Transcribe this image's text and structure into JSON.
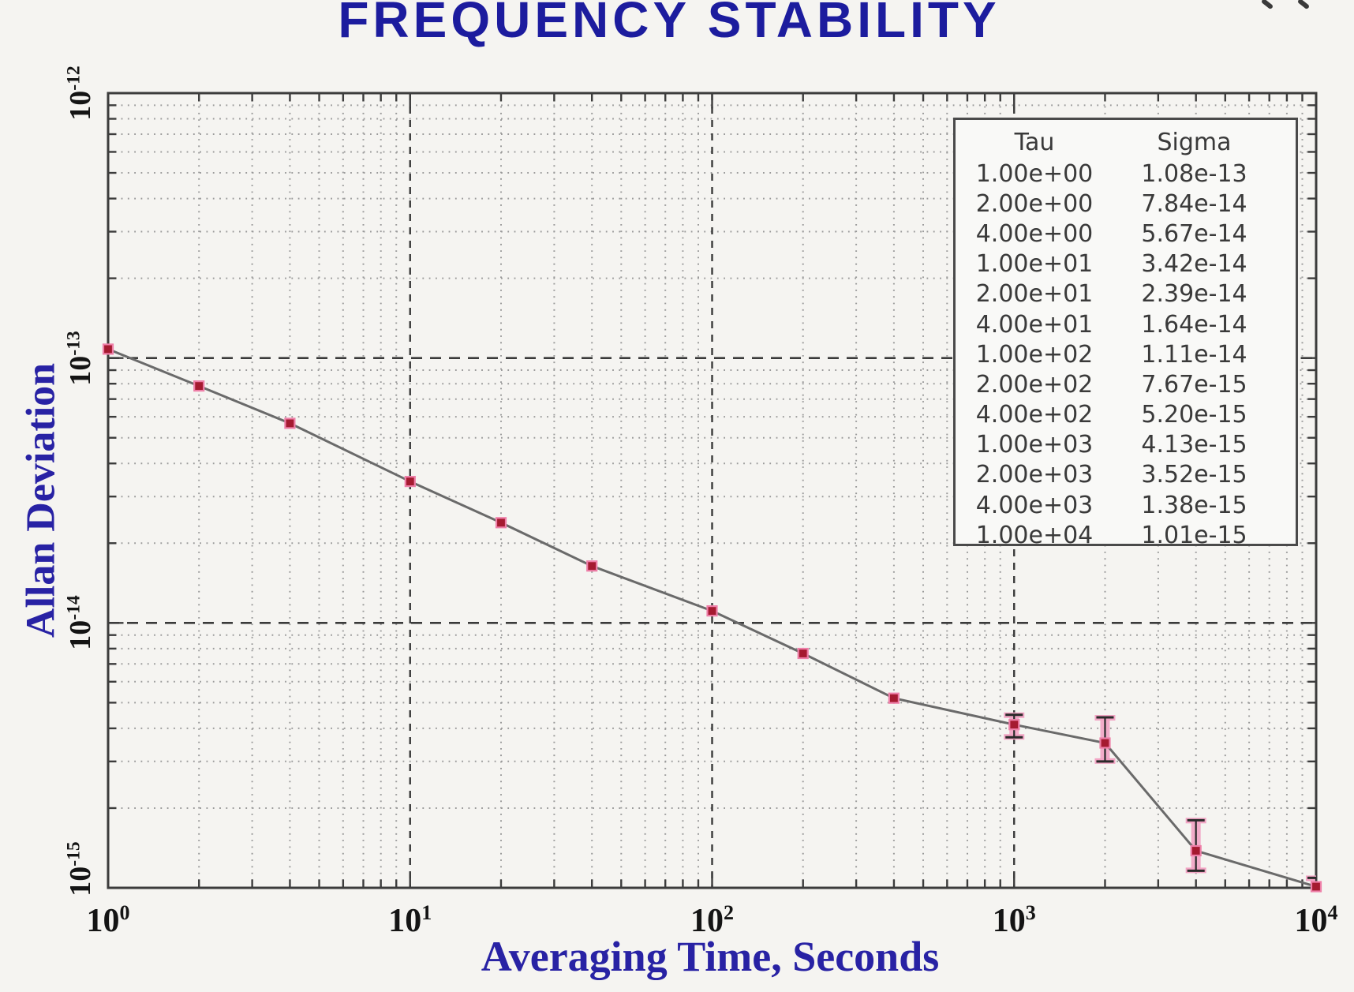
{
  "chart_data": {
    "type": "line",
    "title": "FREQUENCY STABILITY",
    "xlabel": "Averaging Time, Seconds",
    "ylabel": "Allan Deviation",
    "x_scale": "log",
    "y_scale": "log",
    "xlim": [
      1,
      10000
    ],
    "ylim": [
      1e-15,
      1e-12
    ],
    "grid": {
      "minor": "dotted",
      "major": "dashed"
    },
    "legend_position": "upper-right",
    "x_ticks": [
      {
        "base": "10",
        "exp": "0",
        "value": 1
      },
      {
        "base": "10",
        "exp": "1",
        "value": 10
      },
      {
        "base": "10",
        "exp": "2",
        "value": 100
      },
      {
        "base": "10",
        "exp": "3",
        "value": 1000
      },
      {
        "base": "10",
        "exp": "4",
        "value": 10000
      }
    ],
    "y_ticks": [
      {
        "base": "10",
        "exp": "-12",
        "value": 1e-12
      },
      {
        "base": "10",
        "exp": "-13",
        "value": 1e-13
      },
      {
        "base": "10",
        "exp": "-14",
        "value": 1e-14
      },
      {
        "base": "10",
        "exp": "-15",
        "value": 1e-15
      }
    ],
    "series": [
      {
        "name": "allan-deviation",
        "marker": "square",
        "x": [
          1,
          2,
          4,
          10,
          20,
          40,
          100,
          200,
          400,
          1000,
          2000,
          4000,
          10000
        ],
        "y": [
          1.08e-13,
          7.84e-14,
          5.67e-14,
          3.42e-14,
          2.39e-14,
          1.64e-14,
          1.11e-14,
          7.67e-15,
          5.2e-15,
          4.13e-15,
          3.52e-15,
          1.38e-15,
          1.01e-15
        ],
        "err_lo": [
          null,
          null,
          null,
          null,
          null,
          null,
          null,
          null,
          null,
          3.7e-15,
          3e-15,
          1.16e-15,
          9.6e-16
        ],
        "err_hi": [
          null,
          null,
          null,
          null,
          null,
          null,
          null,
          null,
          null,
          4.5e-15,
          4.4e-15,
          1.8e-15,
          1.09e-15
        ]
      }
    ],
    "table": {
      "headers": [
        "Tau",
        "Sigma"
      ],
      "rows": [
        [
          "1.00e+00",
          "1.08e-13"
        ],
        [
          "2.00e+00",
          "7.84e-14"
        ],
        [
          "4.00e+00",
          "5.67e-14"
        ],
        [
          "1.00e+01",
          "3.42e-14"
        ],
        [
          "2.00e+01",
          "2.39e-14"
        ],
        [
          "4.00e+01",
          "1.64e-14"
        ],
        [
          "1.00e+02",
          "1.11e-14"
        ],
        [
          "2.00e+02",
          "7.67e-15"
        ],
        [
          "4.00e+02",
          "5.20e-15"
        ],
        [
          "1.00e+03",
          "4.13e-15"
        ],
        [
          "2.00e+03",
          "3.52e-15"
        ],
        [
          "4.00e+03",
          "1.38e-15"
        ],
        [
          "1.00e+04",
          "1.01e-15"
        ]
      ]
    },
    "colors": {
      "title": "#1c1c9e",
      "axis_label": "#2822a4",
      "tick_label": "#141414",
      "frame": "#3c3c3c",
      "grid_minor": "#9a9a9a",
      "grid_major": "#3a3a3a",
      "line": "#6a6a6a",
      "marker": "#a51a30",
      "marker_edge": "#ee7fa8",
      "error_bar": "#f2a4c4",
      "background": "#f5f4f1",
      "table_bg": "#f9f9f7"
    }
  }
}
